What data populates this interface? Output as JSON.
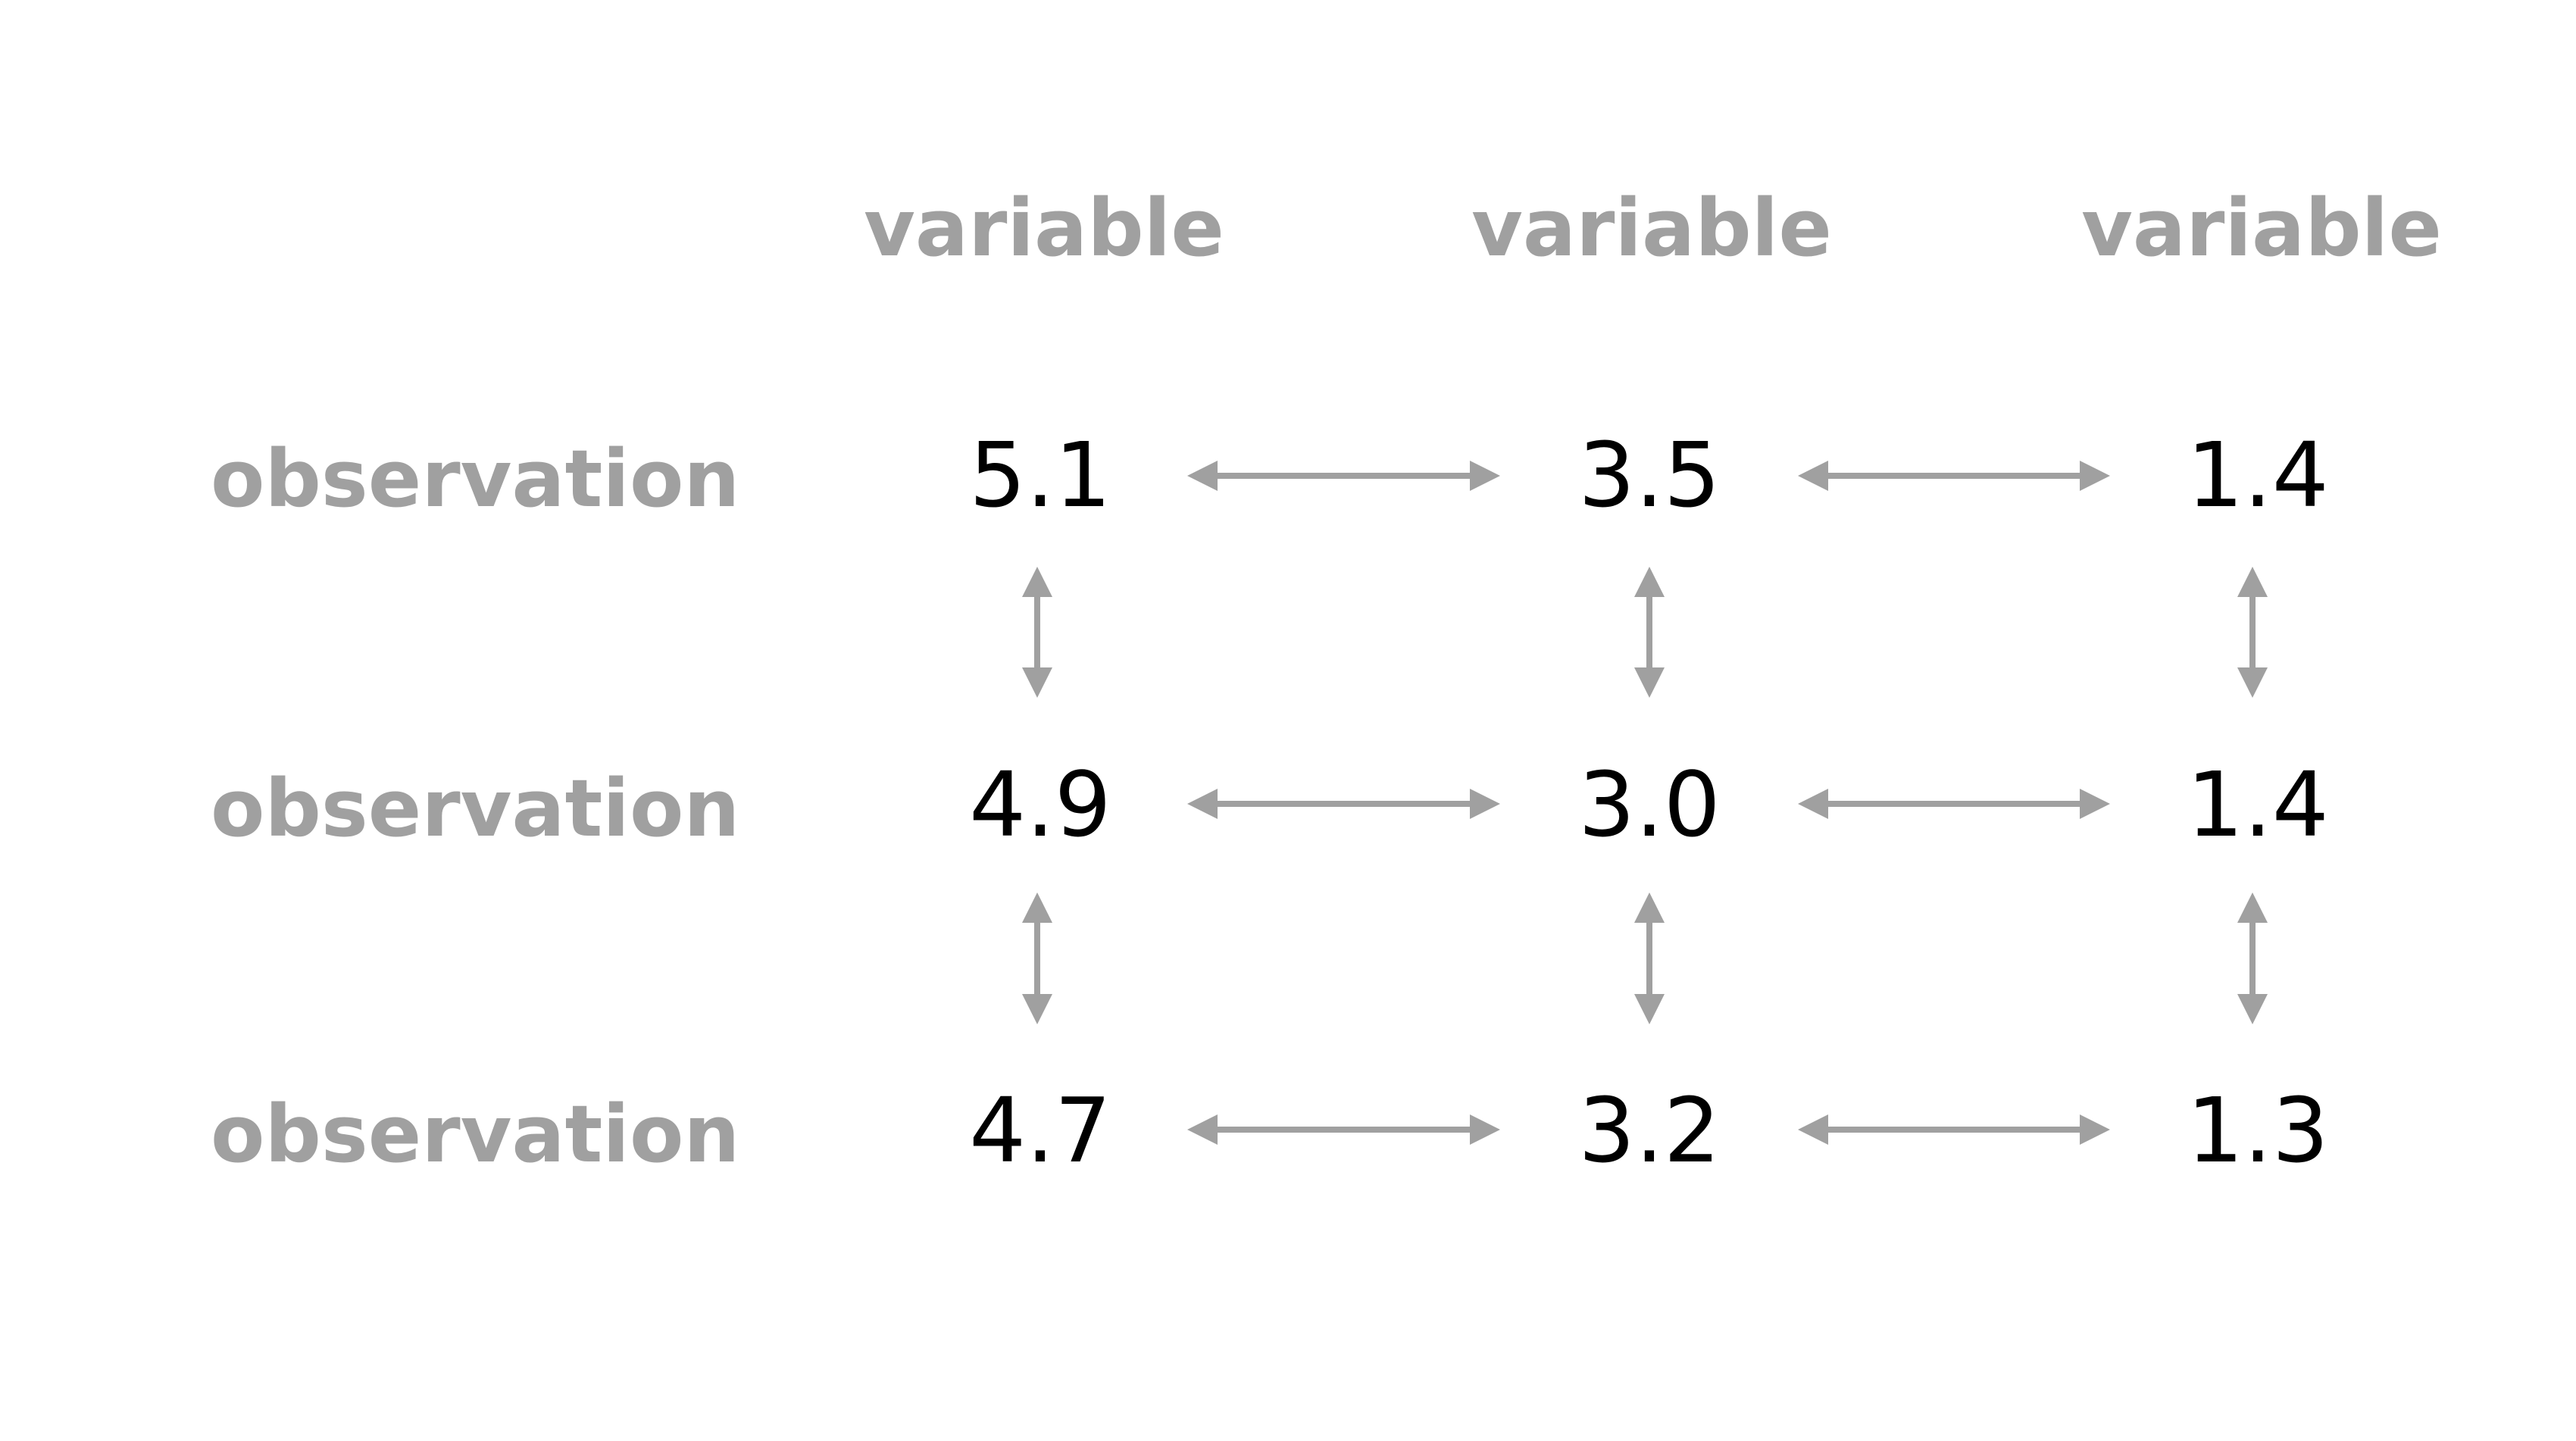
{
  "colors": {
    "label": "#a0a0a0",
    "value": "#000000",
    "arrow": "#a0a0a0",
    "background": "#ffffff"
  },
  "columns": [
    "variable",
    "variable",
    "variable"
  ],
  "rows": [
    {
      "label": "observation",
      "values": [
        "5.1",
        "3.5",
        "1.4"
      ]
    },
    {
      "label": "observation",
      "values": [
        "4.9",
        "3.0",
        "1.4"
      ]
    },
    {
      "label": "observation",
      "values": [
        "4.7",
        "3.2",
        "1.3"
      ]
    }
  ],
  "icons": {
    "horizontal_connector": "double-headed-horizontal-arrow",
    "vertical_connector": "double-headed-vertical-arrow"
  }
}
